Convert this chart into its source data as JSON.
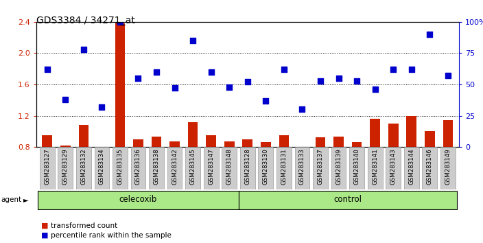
{
  "title": "GDS3384 / 34271_at",
  "samples": [
    "GSM283127",
    "GSM283129",
    "GSM283132",
    "GSM283134",
    "GSM283135",
    "GSM283136",
    "GSM283138",
    "GSM283142",
    "GSM283145",
    "GSM283147",
    "GSM283148",
    "GSM283128",
    "GSM283130",
    "GSM283131",
    "GSM283133",
    "GSM283137",
    "GSM283139",
    "GSM283140",
    "GSM283141",
    "GSM283143",
    "GSM283144",
    "GSM283146",
    "GSM283149"
  ],
  "bar_values": [
    0.95,
    0.82,
    1.08,
    0.8,
    2.38,
    0.9,
    0.93,
    0.87,
    1.12,
    0.95,
    0.87,
    0.9,
    0.86,
    0.95,
    0.79,
    0.92,
    0.93,
    0.86,
    1.16,
    1.1,
    1.2,
    1.0,
    1.14
  ],
  "scatter_pct": [
    62,
    38,
    78,
    32,
    100,
    55,
    60,
    47,
    85,
    60,
    48,
    52,
    37,
    62,
    30,
    53,
    55,
    53,
    46,
    62,
    62,
    90,
    57
  ],
  "celecoxib_count": 11,
  "control_count": 12,
  "ylim_left": [
    0.8,
    2.4
  ],
  "ylim_right": [
    0,
    100
  ],
  "yticks_left": [
    0.8,
    1.2,
    1.6,
    2.0,
    2.4
  ],
  "yticks_right": [
    0,
    25,
    50,
    75,
    100
  ],
  "ytick_labels_right": [
    "0",
    "25",
    "50",
    "75",
    "100%"
  ],
  "bar_color": "#cc2200",
  "scatter_color": "#0000cc",
  "celecoxib_bg": "#aae888",
  "control_bg": "#aae888",
  "legend_bar": "transformed count",
  "legend_scatter": "percentile rank within the sample",
  "agent_label": "agent"
}
